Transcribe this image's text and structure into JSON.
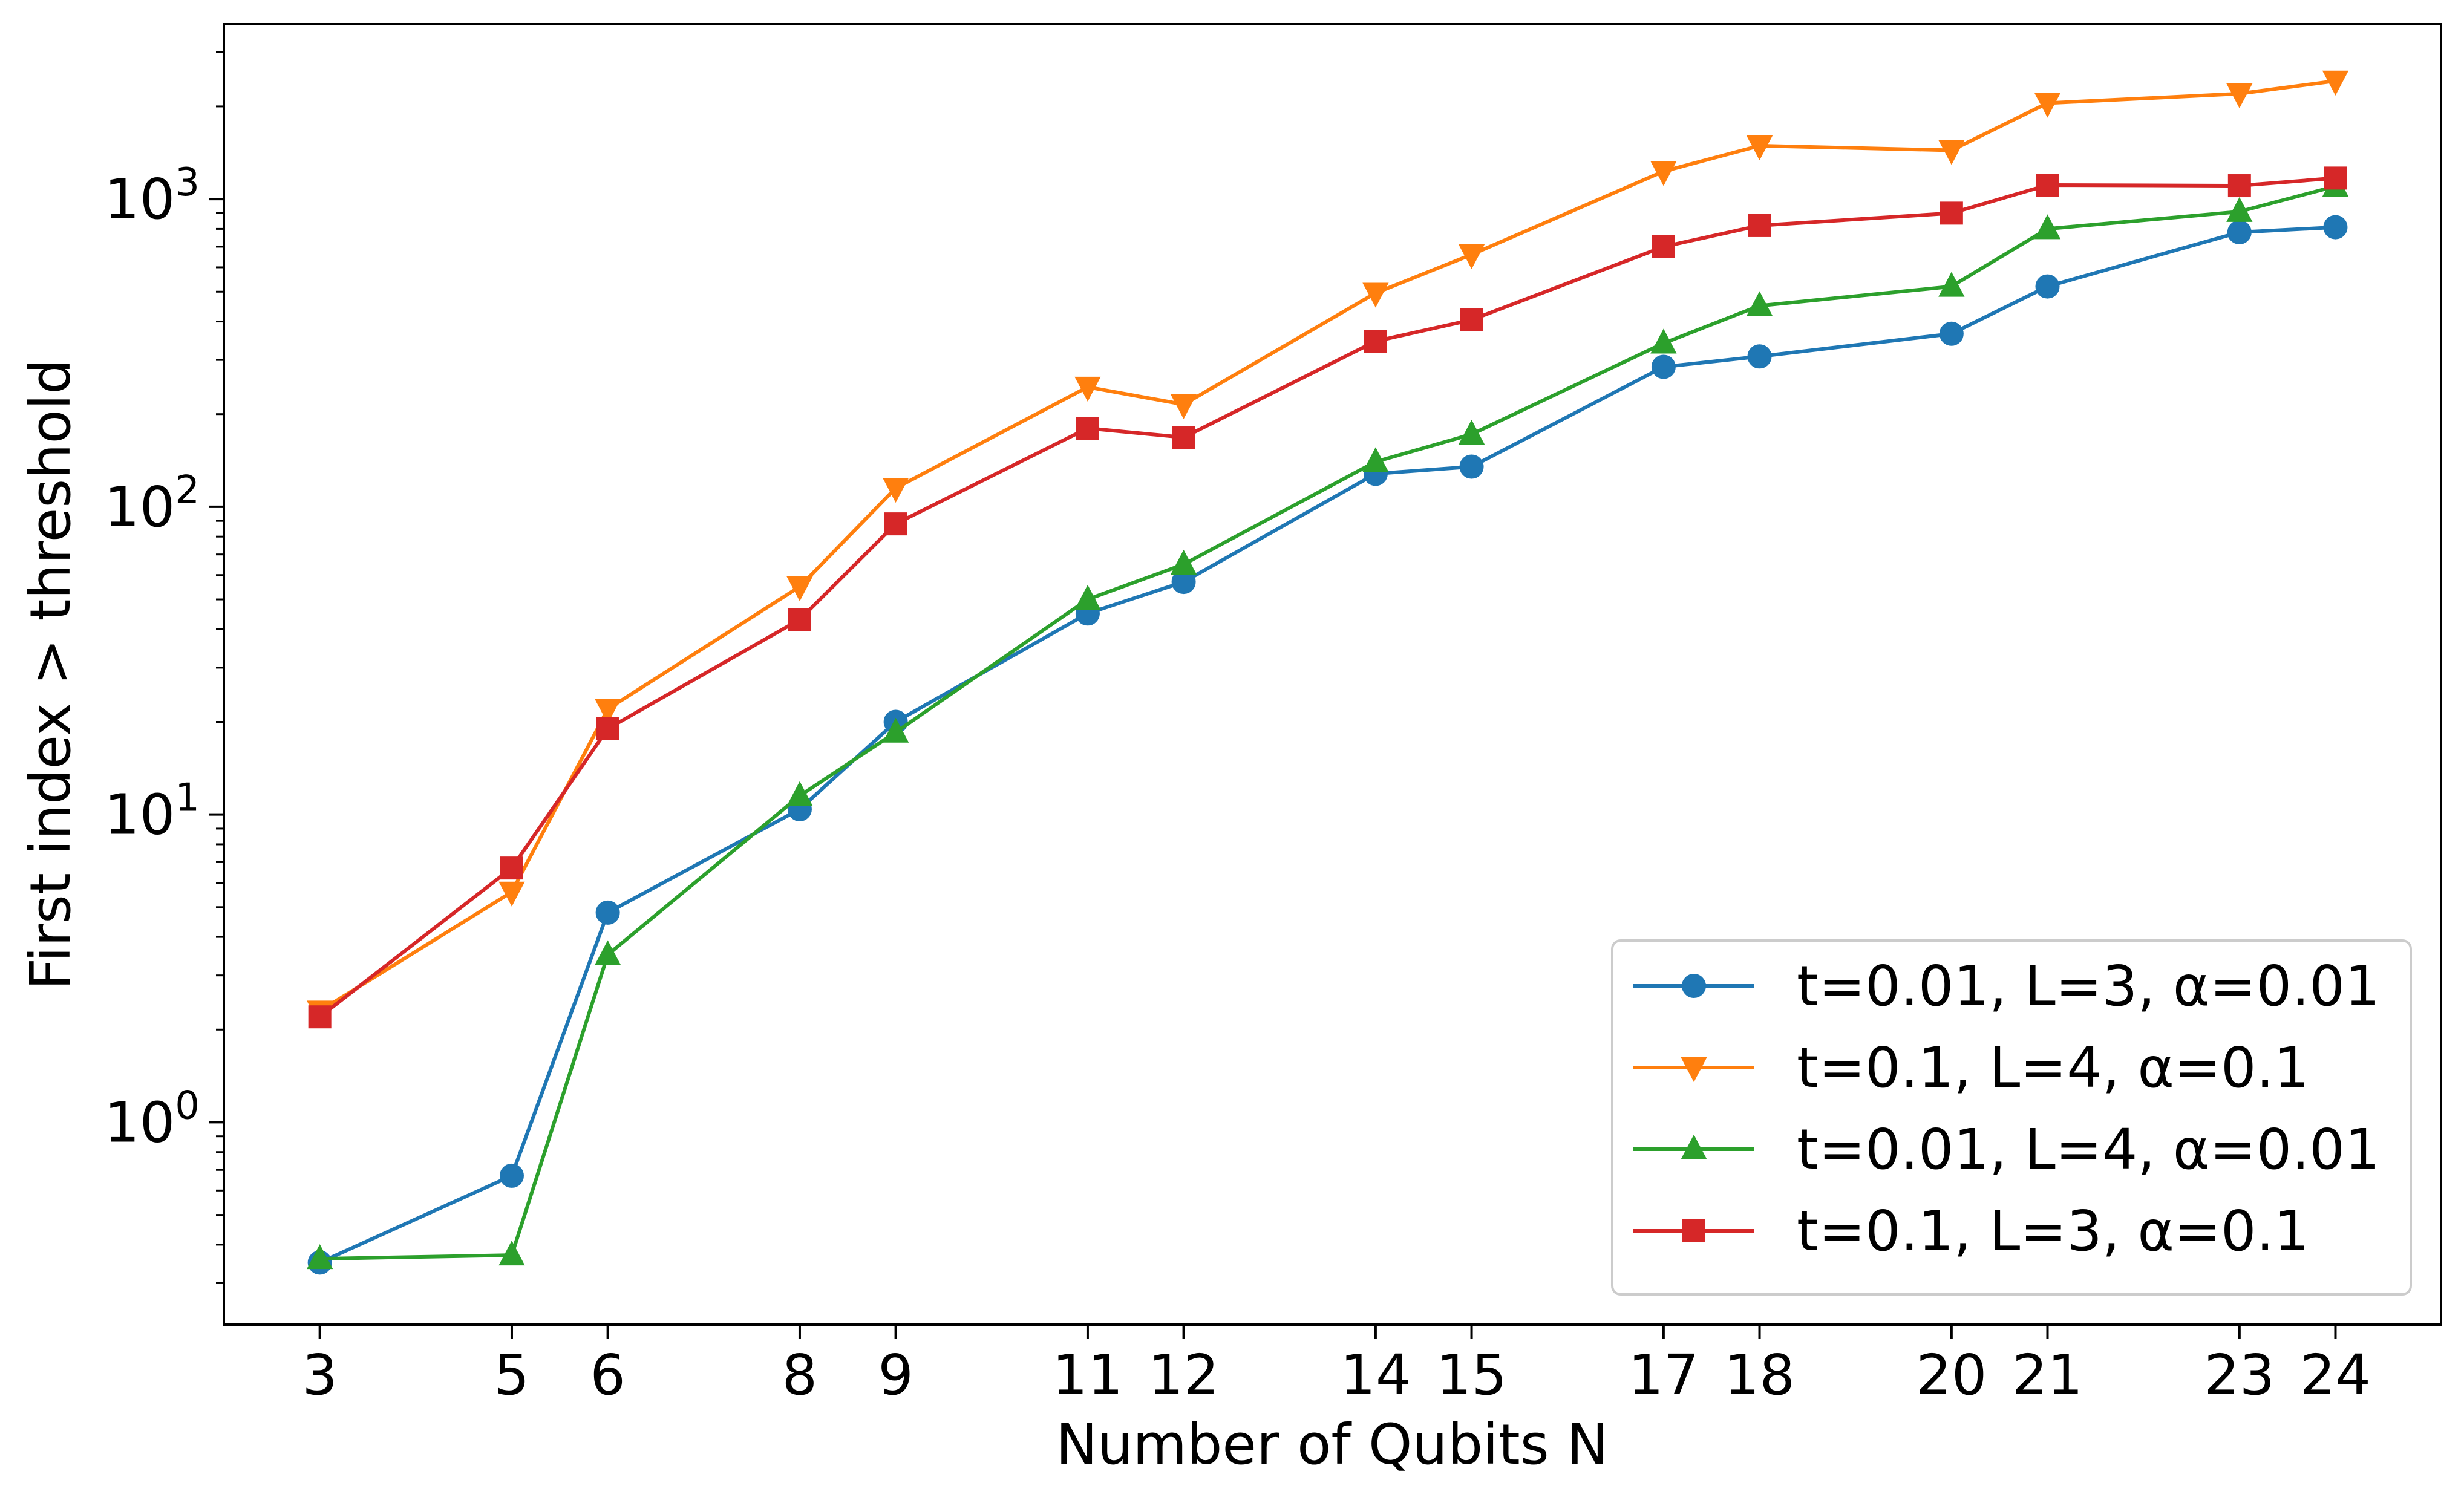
{
  "chart_data": {
    "type": "line",
    "title": "",
    "xlabel": "Number of Qubits N",
    "ylabel": "First index > threshold",
    "x_ticks": [
      3,
      5,
      6,
      8,
      9,
      11,
      12,
      14,
      15,
      17,
      18,
      20,
      21,
      23,
      24
    ],
    "xlim": [
      2,
      25.1
    ],
    "ylim": [
      0.22,
      3700
    ],
    "yscale": "log",
    "y_ticks": [
      1,
      10,
      100,
      1000
    ],
    "y_tick_labels": [
      {
        "base": "10",
        "exp": "0"
      },
      {
        "base": "10",
        "exp": "1"
      },
      {
        "base": "10",
        "exp": "2"
      },
      {
        "base": "10",
        "exp": "3"
      }
    ],
    "grid": false,
    "legend_position": "lower right",
    "series": [
      {
        "name": "t=0.01, L=3, α=0.01",
        "color": "#1f77b4",
        "marker": "circle",
        "x": [
          3,
          5,
          6,
          8,
          9,
          11,
          12,
          14,
          15,
          17,
          18,
          20,
          21,
          23,
          24
        ],
        "y": [
          0.35,
          0.67,
          4.8,
          10.4,
          20,
          45,
          57,
          128,
          135,
          285,
          308,
          365,
          520,
          780,
          810
        ]
      },
      {
        "name": "t=0.1, L=4, α=0.1",
        "color": "#ff7f0e",
        "marker": "triangle-down",
        "x": [
          3,
          5,
          6,
          8,
          9,
          11,
          12,
          14,
          15,
          17,
          18,
          20,
          21,
          23,
          24
        ],
        "y": [
          2.3,
          5.6,
          22,
          55,
          115,
          245,
          215,
          495,
          660,
          1230,
          1490,
          1440,
          2050,
          2200,
          2420
        ]
      },
      {
        "name": "t=0.01, L=4, α=0.01",
        "color": "#2ca02c",
        "marker": "triangle-up",
        "x": [
          3,
          5,
          6,
          8,
          9,
          11,
          12,
          14,
          15,
          17,
          18,
          20,
          21,
          23,
          24
        ],
        "y": [
          0.36,
          0.37,
          3.5,
          11.5,
          18.5,
          50,
          65,
          140,
          172,
          340,
          450,
          520,
          800,
          910,
          1100
        ]
      },
      {
        "name": "t=0.1, L=3, α=0.1",
        "color": "#d62728",
        "marker": "square",
        "x": [
          3,
          5,
          6,
          8,
          9,
          11,
          12,
          14,
          15,
          17,
          18,
          20,
          21,
          23,
          24
        ],
        "y": [
          2.2,
          6.7,
          19,
          43,
          88,
          180,
          168,
          345,
          405,
          700,
          820,
          900,
          1110,
          1105,
          1170
        ]
      }
    ]
  }
}
